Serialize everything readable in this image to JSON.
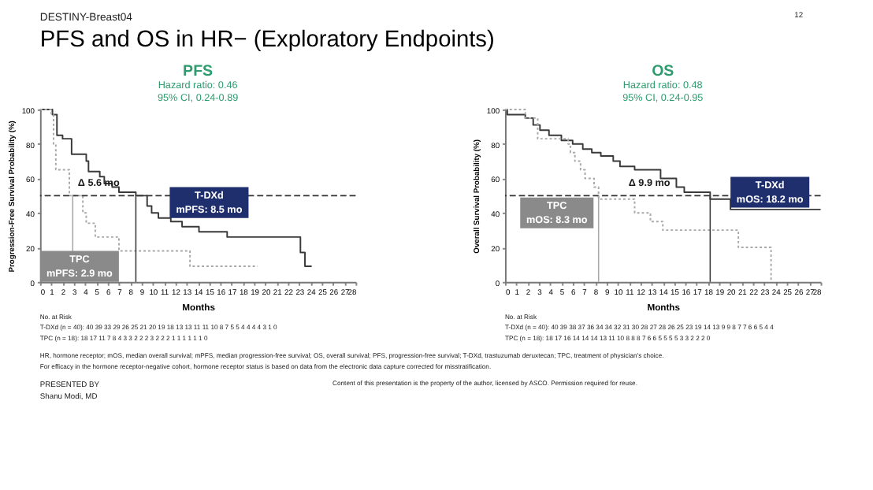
{
  "chart_data": [
    {
      "type": "step",
      "title": "PFS",
      "subtitle": "Hazard ratio: 0.46",
      "xlabel": "Months",
      "ylabel": "Progression-Free Survival Probability (%)",
      "xlim": [
        0,
        28
      ],
      "ylim": [
        0,
        100
      ],
      "xticks": [
        0,
        1,
        2,
        3,
        4,
        5,
        6,
        7,
        8,
        9,
        10,
        11,
        12,
        13,
        14,
        15,
        16,
        17,
        18,
        19,
        20,
        21,
        22,
        23,
        24,
        25,
        26,
        27,
        28
      ],
      "yticks": [
        0,
        20,
        40,
        60,
        80,
        100
      ],
      "series": [
        {
          "name": "T-DXd",
          "color": "#3a3a3a",
          "line_style": "solid",
          "x": [
            0,
            1.1,
            1.5,
            2,
            2.8,
            4.1,
            4.3,
            5.3,
            5.7,
            6.4,
            7,
            8.5,
            9.5,
            9.9,
            10.5,
            11.6,
            12.6,
            14.1,
            16.6,
            23.1,
            23.5,
            24.1
          ],
          "values": [
            100,
            97,
            85,
            83,
            74,
            70,
            64,
            61,
            57,
            55,
            52,
            50,
            44,
            40,
            37,
            35,
            32,
            29,
            26,
            17,
            9,
            9
          ]
        },
        {
          "name": "TPC",
          "color": "#a8a8a8",
          "line_style": "dotted",
          "x": [
            0,
            1.0,
            1.2,
            1.4,
            2.6,
            3.8,
            4.1,
            4.9,
            7,
            13.3,
            19.3
          ],
          "values": [
            100,
            97,
            80,
            65,
            50,
            40,
            34,
            26,
            18,
            9,
            9
          ]
        }
      ],
      "ref_lines": [
        {
          "axis": "y",
          "value": 50,
          "color": "#333333",
          "line_style": "dashed"
        },
        {
          "axis": "x",
          "value": 8.5,
          "color": "#3a3a3a"
        },
        {
          "axis": "x",
          "value": 2.9,
          "color": "#a8a8a8"
        }
      ],
      "annotations": [
        "95% CI, 0.24-0.89",
        "No. at Risk",
        "T-DXd (n = 40): 40 39 33 29 26 25 21 20 19 18 13 13 11 11 10 8 7 5 5 4 4 4 4 3 1 0",
        "TPC (n = 18): 18 17 11 7 8 4 3 3 2 2 2 3 2 2 2 1 1 1 1 1 1 0",
        "DESTINY-Breast04",
        "PFS and OS in HR− (Exploratory Endpoints)",
        "12",
        "mPFS: 8.5 mo",
        "mPFS: 2.9 mo",
        {
          "text": "Δ 5.6 mo",
          "x": 5.2,
          "y": 53
        }
      ]
    },
    {
      "type": "step",
      "title": "OS",
      "subtitle": "Hazard ratio: 0.48",
      "xlabel": "Months",
      "ylabel": "Overall Survival Probability (%)",
      "xlim": [
        0,
        28
      ],
      "ylim": [
        0,
        100
      ],
      "xticks": [
        0,
        1,
        2,
        3,
        4,
        5,
        6,
        7,
        8,
        9,
        10,
        11,
        12,
        13,
        14,
        15,
        16,
        17,
        18,
        19,
        20,
        21,
        22,
        23,
        24,
        25,
        26,
        27,
        28
      ],
      "yticks": [
        0,
        20,
        40,
        60,
        80,
        100
      ],
      "series": [
        {
          "name": "T-DXd",
          "color": "#3a3a3a",
          "line_style": "solid",
          "x": [
            0,
            0.2,
            1.8,
            2.5,
            3.1,
            3.9,
            5,
            6,
            6.9,
            7.7,
            8.5,
            9.6,
            10.2,
            11.5,
            13.8,
            15.2,
            15.9,
            18.2,
            20,
            28
          ],
          "values": [
            100,
            97,
            95,
            91,
            88,
            85,
            82,
            80,
            77,
            75,
            73,
            70,
            67,
            65,
            60,
            55,
            52,
            48,
            42,
            42
          ]
        },
        {
          "name": "TPC",
          "color": "#a8a8a8",
          "line_style": "dotted",
          "x": [
            0,
            1.8,
            2.9,
            5.6,
            5.8,
            6.2,
            6.7,
            7.1,
            7.9,
            8.3,
            11.5,
            12.9,
            14,
            20.7,
            23.6
          ],
          "values": [
            100,
            95,
            83,
            80,
            75,
            70,
            65,
            60,
            55,
            48,
            40,
            35,
            30,
            20,
            0
          ]
        }
      ],
      "ref_lines": [
        {
          "axis": "y",
          "value": 50,
          "color": "#333333",
          "line_style": "dashed"
        },
        {
          "axis": "x",
          "value": 18.2,
          "color": "#3a3a3a"
        },
        {
          "axis": "x",
          "value": 8.3,
          "color": "#a8a8a8"
        }
      ],
      "annotations": [
        "95% CI, 0.24-0.95",
        "No. at Risk",
        "T-DXd (n = 40): 40 39 38 37 36 34 34 32 31 30 28 27 28 26 25 23 19 14 13 9 9 8 7 7 6 6 5 4 4",
        "TPC (n = 18): 18 17 16 14 14 14 13 11 10 8 8 8 7 6 6 5 5 5 5 3 3 2 2 2 0",
        "HR, hormone receptor; mOS, median overall survival; mPFS, median progression-free survival; OS, overall survival; PFS, progression-free survival; T-DXd, trastuzumab deruxtecan; TPC, treatment of physician's choice.",
        "For efficacy in the hormone receptor-negative cohort, hormone receptor status is based on data from the electronic data capture corrected for misstratification.",
        "PRESENTED BY",
        "Shanu Modi, MD",
        "Content of this presentation is the property of the author, licensed by ASCO. Permission required for reuse.",
        "mOS: 18.2 mo",
        "mOS: 8.3 mo",
        {
          "text": "Δ 9.9 mo",
          "x": 12.8,
          "y": 53
        }
      ]
    }
  ]
}
